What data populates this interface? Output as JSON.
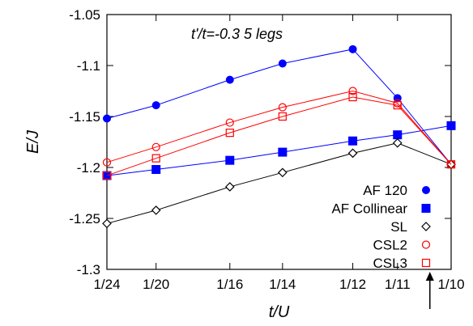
{
  "chart_data": {
    "type": "line",
    "annotation": "t'/t=-0.3 5 legs",
    "xlabel": "t/U",
    "ylabel": "E/J",
    "x_tick_labels": [
      "1/24",
      "1/20",
      "1/16",
      "1/14",
      "1/12",
      "1/11",
      "1/10"
    ],
    "x_tick_values": [
      0.041667,
      0.05,
      0.0625,
      0.071429,
      0.083333,
      0.090909,
      0.1
    ],
    "y_tick_labels": [
      "-1.05",
      "-1.1",
      "-1.15",
      "-1.2",
      "-1.25",
      "-1.3"
    ],
    "y_tick_values": [
      -1.05,
      -1.1,
      -1.15,
      -1.2,
      -1.25,
      -1.3
    ],
    "xlim": [
      0.041667,
      0.1
    ],
    "ylim": [
      -1.3,
      -1.05
    ],
    "grid": false,
    "legend_position": "bottom-right",
    "arrow_marker_x": 0.0964,
    "series": [
      {
        "name": "AF 120",
        "color": "#0000ff",
        "marker": "filled-circle",
        "x": [
          0.041667,
          0.05,
          0.0625,
          0.071429,
          0.083333,
          0.090909,
          0.1
        ],
        "y": [
          -1.152,
          -1.139,
          -1.114,
          -1.098,
          -1.084,
          -1.132,
          -1.197
        ]
      },
      {
        "name": "AF Collinear",
        "color": "#0000ff",
        "marker": "filled-square",
        "x": [
          0.041667,
          0.05,
          0.0625,
          0.071429,
          0.083333,
          0.090909,
          0.1
        ],
        "y": [
          -1.208,
          -1.202,
          -1.193,
          -1.185,
          -1.174,
          -1.168,
          -1.159
        ]
      },
      {
        "name": "SL",
        "color": "#000000",
        "marker": "open-diamond",
        "x": [
          0.041667,
          0.05,
          0.0625,
          0.071429,
          0.083333,
          0.090909,
          0.1
        ],
        "y": [
          -1.255,
          -1.242,
          -1.219,
          -1.205,
          -1.186,
          -1.176,
          -1.197
        ]
      },
      {
        "name": "CSL2",
        "color": "#ff0000",
        "marker": "open-circle",
        "x": [
          0.041667,
          0.05,
          0.0625,
          0.071429,
          0.083333,
          0.090909,
          0.1
        ],
        "y": [
          -1.195,
          -1.18,
          -1.156,
          -1.141,
          -1.125,
          -1.137,
          -1.197
        ]
      },
      {
        "name": "CSL3",
        "color": "#ff0000",
        "marker": "open-square",
        "x": [
          0.041667,
          0.05,
          0.0625,
          0.071429,
          0.083333,
          0.090909,
          0.1
        ],
        "y": [
          -1.208,
          -1.191,
          -1.166,
          -1.15,
          -1.131,
          -1.139,
          -1.197
        ]
      }
    ]
  }
}
